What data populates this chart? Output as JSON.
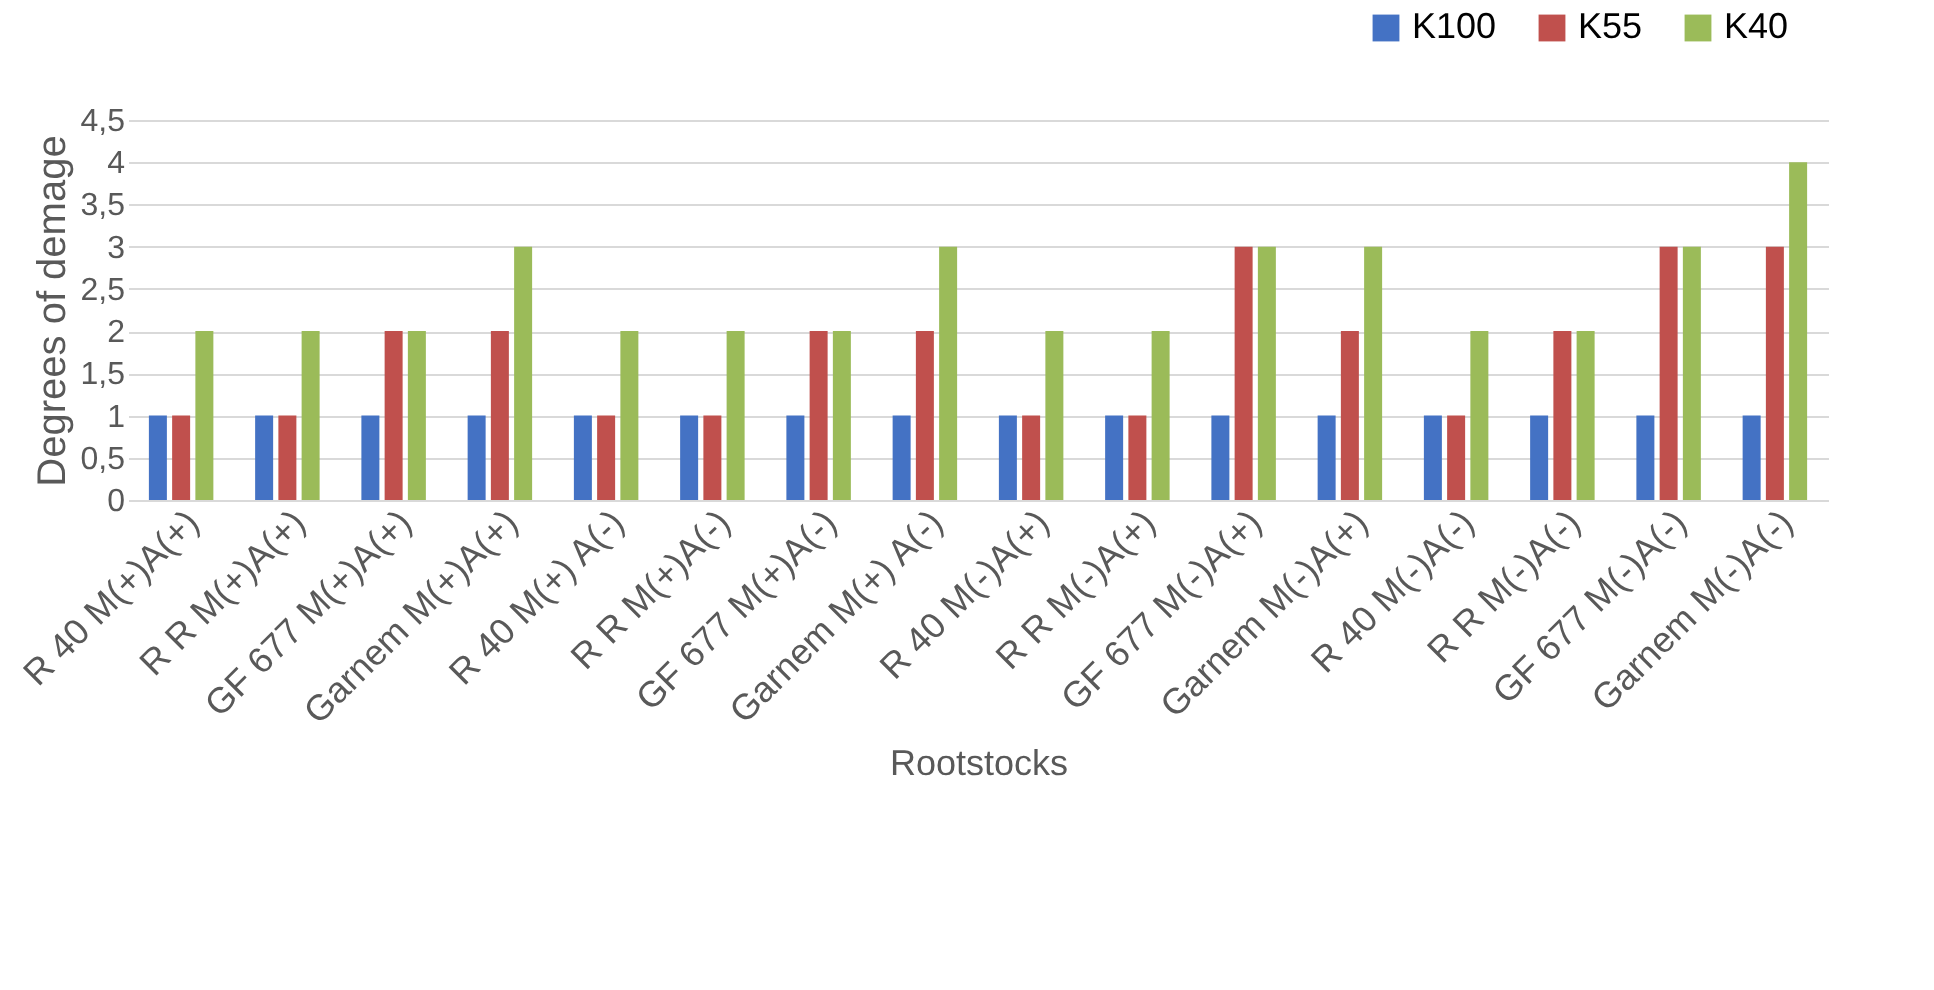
{
  "chart_data": {
    "type": "bar",
    "xlabel": "Rootstocks",
    "ylabel": "Degrees of demage",
    "categories": [
      "R 40  M(+)A(+)",
      "R R  M(+)A(+)",
      "GF 677  M(+)A(+)",
      "Garnem  M(+)A(+)",
      "R 40  M(+) A(-)",
      "R R  M(+)A(-)",
      "GF 677  M(+)A(-)",
      "Garnem  M(+) A(-)",
      "R 40  M(-)A(+)",
      "R R  M(-)A(+)",
      "GF 677  M(-)A(+)",
      "Garnem  M(-)A(+)",
      "R 40  M(-)A(-)",
      "R R  M(-)A(-)",
      "GF 677  M(-)A(-)",
      "Garnem  M(-)A(-)"
    ],
    "series": [
      {
        "name": "K100",
        "color": "#4472c4",
        "values": [
          1,
          1,
          1,
          1,
          1,
          1,
          1,
          1,
          1,
          1,
          1,
          1,
          1,
          1,
          1,
          1
        ]
      },
      {
        "name": "K55",
        "color": "#c0504d",
        "values": [
          1,
          1,
          2,
          2,
          1,
          1,
          2,
          2,
          1,
          1,
          3,
          2,
          1,
          2,
          3,
          3
        ]
      },
      {
        "name": "K40",
        "color": "#9bbb59",
        "values": [
          2,
          2,
          2,
          3,
          2,
          2,
          2,
          3,
          2,
          2,
          3,
          3,
          2,
          2,
          3,
          4
        ]
      }
    ],
    "ylim": [
      0,
      4.5
    ],
    "yticks": [
      0,
      {
        "value": 0.5,
        "label": "0,5"
      },
      1,
      {
        "value": 1.5,
        "label": "1,5"
      },
      2,
      {
        "value": 2.5,
        "label": "2,5"
      },
      3,
      {
        "value": 3.5,
        "label": "3,5"
      },
      4,
      {
        "value": 4.5,
        "label": "4,5"
      }
    ],
    "grid": "y",
    "legend": "top right"
  }
}
